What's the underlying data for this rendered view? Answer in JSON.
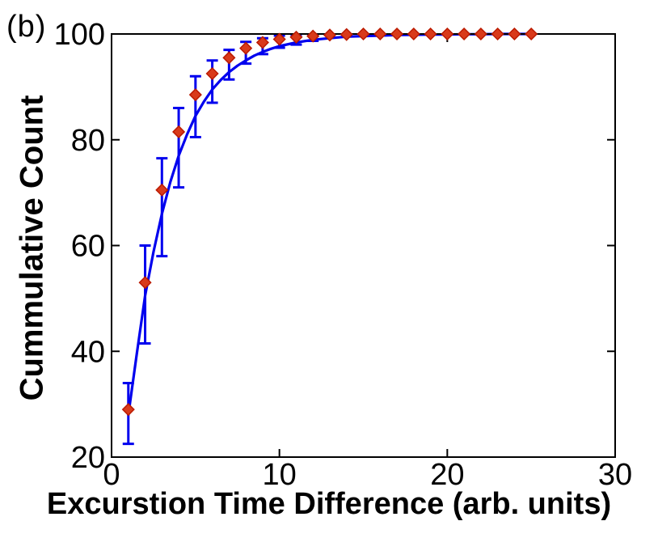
{
  "figure": {
    "panel_label": "(b)",
    "background": "#ffffff"
  },
  "chart_data": {
    "type": "line",
    "title": "",
    "xlabel": "Excurstion Time Difference (arb. units)",
    "ylabel": "Cummulative Count",
    "xlim": [
      0,
      30
    ],
    "ylim": [
      20,
      100
    ],
    "xticks": [
      0,
      10,
      20,
      30
    ],
    "yticks": [
      20,
      40,
      60,
      80,
      100
    ],
    "grid": false,
    "legend_position": "none",
    "colors": {
      "line": "#0000ee",
      "errorbar": "#0000ee",
      "marker_fill": "#d93a1a",
      "marker_edge": "#bb1a00",
      "axis": "#000000",
      "background": "#ffffff"
    },
    "series": [
      {
        "name": "cumulative-count-data",
        "style": "diamond-markers-with-errorbars",
        "x": [
          1,
          2,
          3,
          4,
          5,
          6,
          7,
          8,
          9,
          10,
          11,
          12,
          13,
          14,
          15,
          16,
          17,
          18,
          19,
          20,
          21,
          22,
          23,
          24,
          25
        ],
        "y": [
          29,
          53,
          70.5,
          81.5,
          88.5,
          92.5,
          95.5,
          97.3,
          98.4,
          99,
          99.4,
          99.6,
          99.8,
          99.9,
          100,
          100,
          100,
          100,
          100,
          100,
          100,
          100,
          100,
          100,
          100
        ],
        "err_lo": [
          22.5,
          41.5,
          58,
          71,
          80.5,
          87,
          91.4,
          94.4,
          96.2,
          97.4,
          98,
          98.7,
          null,
          null,
          null,
          null,
          null,
          null,
          null,
          null,
          null,
          null,
          null,
          null,
          null
        ],
        "err_hi": [
          34,
          60,
          76.5,
          86,
          92,
          95,
          97,
          98.5,
          99.2,
          99.7,
          99.8,
          99.9,
          null,
          null,
          null,
          null,
          null,
          null,
          null,
          null,
          null,
          null,
          null,
          null,
          null
        ]
      },
      {
        "name": "fit-curve",
        "style": "solid-line",
        "x": [
          1,
          1.5,
          2,
          2.5,
          3,
          3.5,
          4,
          4.5,
          5,
          5.5,
          6,
          6.5,
          7,
          7.5,
          8,
          8.5,
          9,
          9.5,
          10,
          11,
          12,
          13,
          14,
          15,
          16,
          17,
          18,
          19,
          20,
          21,
          22,
          23,
          24,
          25
        ],
        "y": [
          28,
          39.5,
          50.5,
          58.8,
          66,
          72,
          77,
          81,
          84.5,
          87.2,
          89.5,
          91.3,
          92.8,
          94,
          95,
          95.9,
          96.6,
          97.2,
          97.7,
          98.4,
          98.9,
          99.2,
          99.5,
          99.6,
          99.7,
          99.8,
          99.85,
          99.9,
          99.9,
          99.95,
          99.95,
          100,
          100,
          100
        ]
      }
    ]
  }
}
